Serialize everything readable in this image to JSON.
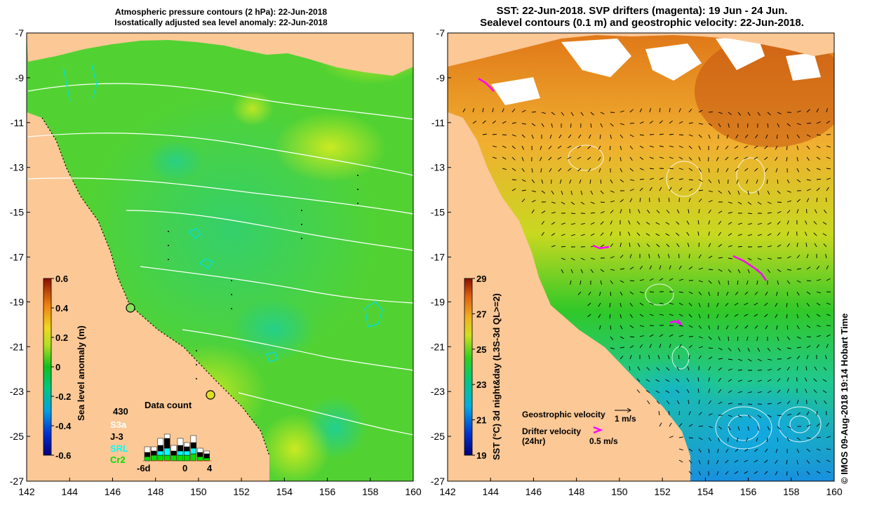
{
  "left_map": {
    "title_line1": "Atmospheric pressure contours (2 hPa): 22-Jun-2018",
    "title_line2": "Isostatically adjusted sea level anomaly: 22-Jun-2018",
    "colorbar": {
      "label": "Sea level anomaly (m)",
      "ticks": [
        "0.6",
        "0.4",
        "0.2",
        "0",
        "-0.2",
        "-0.4",
        "-0.6"
      ]
    },
    "data_count": {
      "title": "Data count",
      "max_label": "430",
      "satellites": [
        "S3a",
        "J-3",
        "SRL",
        "Cr2"
      ],
      "satellite_colors": [
        "#ffffff",
        "#000000",
        "#00ffff",
        "#00e000"
      ],
      "x_labels": [
        "-6d",
        "0",
        "4"
      ]
    },
    "coastline_color": "#00e0e0"
  },
  "right_map": {
    "title_line1": "SST: 22-Jun-2018. SVP drifters (magenta): 19 Jun - 24 Jun.",
    "title_line2": "Sealevel contours (0.1 m) and geostrophic velocity: 22-Jun-2018.",
    "colorbar": {
      "label": "SST (°C) 3d night&day (L3S-3d QL>=2)",
      "ticks": [
        "29",
        "27",
        "25",
        "23",
        "21",
        "19"
      ]
    },
    "legend": {
      "geostrophic": "Geostrophic velocity",
      "geostrophic_scale": "1 m/s",
      "drifter_line1": "Drifter velocity",
      "drifter_line2": "(24hr)",
      "drifter_scale": "0.5 m/s"
    },
    "drifter_color": "#ff00ff"
  },
  "axes": {
    "x_ticks": [
      "142",
      "144",
      "146",
      "148",
      "150",
      "152",
      "154",
      "156",
      "158",
      "160"
    ],
    "y_ticks": [
      "-7",
      "-9",
      "-11",
      "-13",
      "-15",
      "-17",
      "-19",
      "-21",
      "-23",
      "-25",
      "-27"
    ]
  },
  "land_color": "#fbc896",
  "credit": "© IMOS 09-Aug-2018 19:14 Hobart Time"
}
